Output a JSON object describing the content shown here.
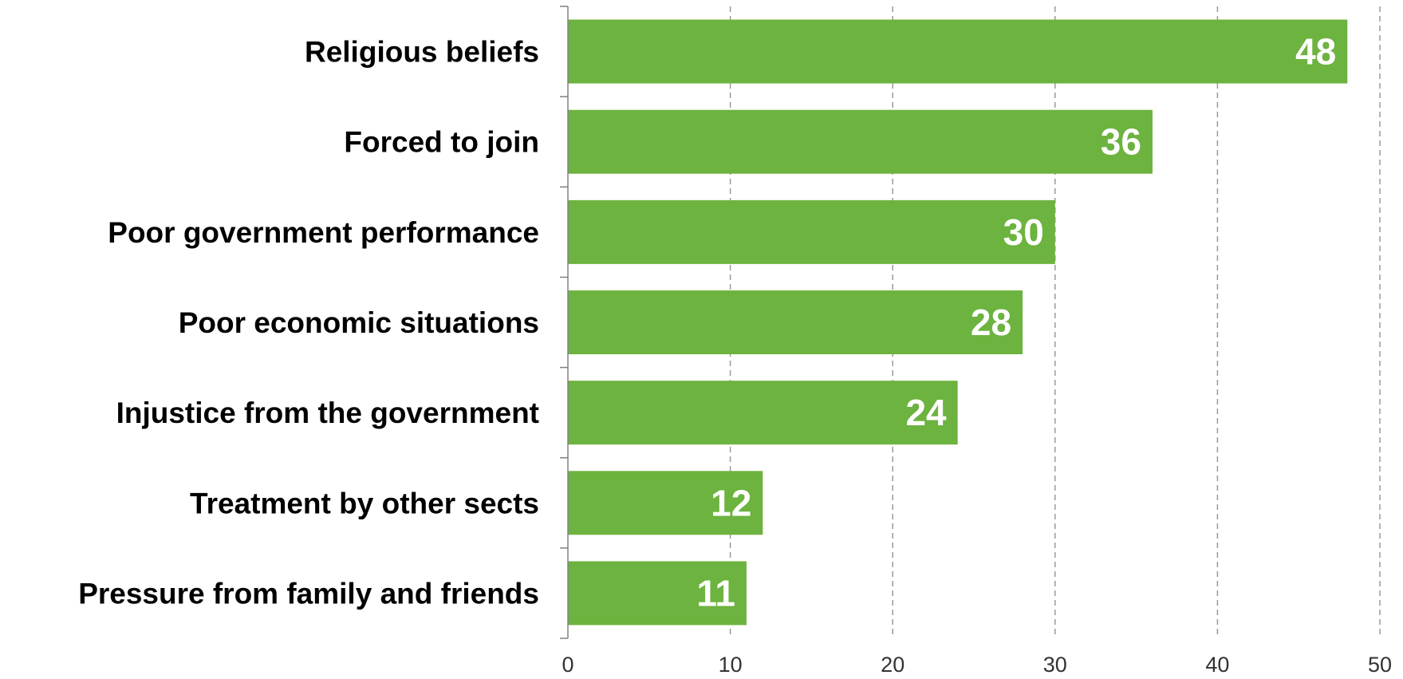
{
  "chart_data": {
    "type": "bar",
    "orientation": "horizontal",
    "categories": [
      "Religious beliefs",
      "Forced to join",
      "Poor government performance",
      "Poor economic situations",
      "Injustice from the government",
      "Treatment by other sects",
      "Pressure from family and friends"
    ],
    "values": [
      48,
      36,
      30,
      28,
      24,
      12,
      11
    ],
    "title": "",
    "xlabel": "",
    "ylabel": "",
    "xlim": [
      0,
      50
    ],
    "xticks": [
      0,
      10,
      20,
      30,
      40,
      50
    ],
    "grid": "vertical dashed",
    "legend": "none",
    "bar_color": "#6db33f",
    "data_labels": "inside-end, white"
  }
}
